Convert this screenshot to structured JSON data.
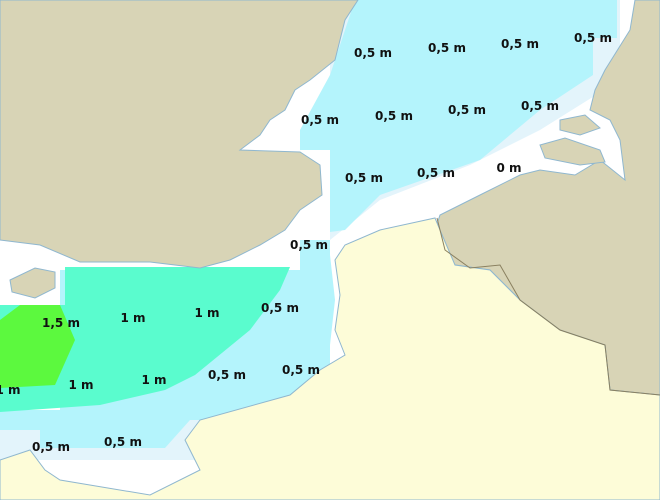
{
  "map": {
    "colors": {
      "land_uk": "#d8d4b6",
      "land_france": "#fdfcd8",
      "coast_line": "#8fb7cf",
      "sea_white": "#ffffff",
      "zone_0": "#e3f4fb",
      "zone_0_5": "#b4f4fc",
      "zone_1": "#5afcce",
      "zone_1_5": "#5cf93e"
    },
    "labels": [
      "0,5 m",
      "0,5 m",
      "0,5 m",
      "0,5 m",
      "0,5 m",
      "0,5 m",
      "0,5 m",
      "0,5 m",
      "0,5 m",
      "0,5 m",
      "0 m",
      "0,5 m",
      "0,5 m",
      "1,5 m",
      "1 m",
      "1 m",
      "1 m",
      "1 m",
      "1 m",
      "0,5 m",
      "0,5 m",
      "0,5 m",
      "0,5 m"
    ]
  }
}
